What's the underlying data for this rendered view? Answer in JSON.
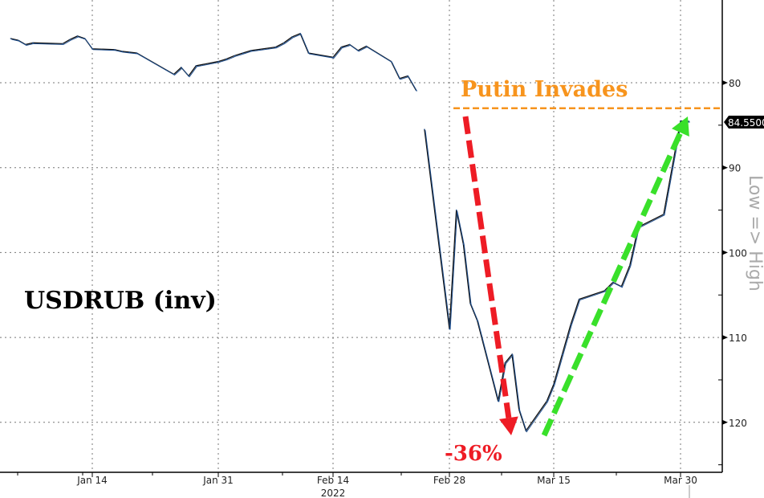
{
  "chart_data": {
    "type": "line",
    "title": "USDRUB (inv)",
    "ylabel": "Low => High",
    "xlabel": "",
    "y_inverted": true,
    "ylim": [
      70.3,
      125.9
    ],
    "grid": true,
    "x_ticks": [
      {
        "label": "Jan 14",
        "date": "2022-01-14"
      },
      {
        "label": "Jan 31",
        "date": "2022-01-31"
      },
      {
        "label": "Feb 14",
        "date": "2022-02-14"
      },
      {
        "label": "Feb 28",
        "date": "2022-02-28"
      },
      {
        "label": "Mar 15",
        "date": "2022-03-15"
      },
      {
        "label": "Mar 30",
        "date": "2022-03-30"
      }
    ],
    "year_label": "2022",
    "y_ticks": [
      80,
      90,
      100,
      110,
      120
    ],
    "last_value_label": "84.5500",
    "last_value": 84.55,
    "series_color": "#1f4e8c",
    "points": [
      [
        "2022-01-03",
        74.8
      ],
      [
        "2022-01-04",
        75.0
      ],
      [
        "2022-01-05",
        75.5
      ],
      [
        "2022-01-06",
        75.3
      ],
      [
        "2022-01-10",
        75.4
      ],
      [
        "2022-01-11",
        74.9
      ],
      [
        "2022-01-12",
        74.5
      ],
      [
        "2022-01-13",
        74.8
      ],
      [
        "2022-01-14",
        76.0
      ],
      [
        "2022-01-17",
        76.1
      ],
      [
        "2022-01-18",
        76.3
      ],
      [
        "2022-01-19",
        76.4
      ],
      [
        "2022-01-20",
        76.5
      ],
      [
        "2022-01-21",
        77.0
      ],
      [
        "2022-01-24",
        78.5
      ],
      [
        "2022-01-25",
        79.0
      ],
      [
        "2022-01-26",
        78.2
      ],
      [
        "2022-01-27",
        79.2
      ],
      [
        "2022-01-28",
        78.0
      ],
      [
        "2022-01-31",
        77.5
      ],
      [
        "2022-02-01",
        77.2
      ],
      [
        "2022-02-02",
        76.8
      ],
      [
        "2022-02-03",
        76.5
      ],
      [
        "2022-02-04",
        76.2
      ],
      [
        "2022-02-07",
        75.8
      ],
      [
        "2022-02-08",
        75.3
      ],
      [
        "2022-02-09",
        74.6
      ],
      [
        "2022-02-10",
        74.2
      ],
      [
        "2022-02-11",
        76.5
      ],
      [
        "2022-02-14",
        77.0
      ],
      [
        "2022-02-15",
        75.8
      ],
      [
        "2022-02-16",
        75.5
      ],
      [
        "2022-02-17",
        76.2
      ],
      [
        "2022-02-18",
        75.7
      ],
      [
        "2022-02-21",
        77.5
      ],
      [
        "2022-02-22",
        79.5
      ],
      [
        "2022-02-23",
        79.2
      ],
      [
        "2022-02-24",
        80.9
      ],
      [
        "2022-02-25",
        85.5
      ],
      [
        "2022-02-28",
        109.0
      ],
      [
        "2022-03-01",
        95.0
      ],
      [
        "2022-03-02",
        99.0
      ],
      [
        "2022-03-03",
        106.0
      ],
      [
        "2022-03-04",
        108.0
      ],
      [
        "2022-03-07",
        117.5
      ],
      [
        "2022-03-08",
        113.0
      ],
      [
        "2022-03-09",
        112.0
      ],
      [
        "2022-03-10",
        118.5
      ],
      [
        "2022-03-11",
        121.0
      ],
      [
        "2022-03-14",
        117.5
      ],
      [
        "2022-03-15",
        115.5
      ],
      [
        "2022-03-16",
        112.0
      ],
      [
        "2022-03-17",
        108.5
      ],
      [
        "2022-03-18",
        105.5
      ],
      [
        "2022-03-21",
        104.5
      ],
      [
        "2022-03-22",
        103.5
      ],
      [
        "2022-03-23",
        104.0
      ],
      [
        "2022-03-24",
        101.5
      ],
      [
        "2022-03-25",
        97.0
      ],
      [
        "2022-03-28",
        95.5
      ],
      [
        "2022-03-29",
        90.0
      ],
      [
        "2022-03-30",
        84.5
      ],
      [
        "2022-03-31",
        84.55
      ]
    ],
    "annotations": {
      "event_label": "Putin Invades",
      "event_level": 83.0,
      "event_color": "#f7941d",
      "decline_label": "-36%",
      "decline_color": "#ee1c25",
      "recovery_color": "#39e02a"
    }
  }
}
